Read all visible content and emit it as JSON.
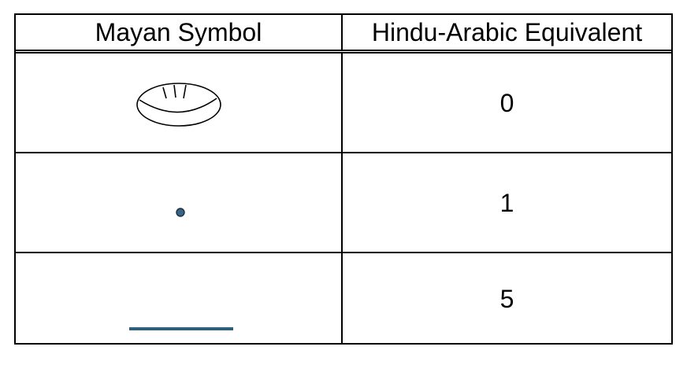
{
  "table": {
    "headers": {
      "symbol": "Mayan Symbol",
      "equivalent": "Hindu-Arabic Equivalent"
    },
    "rows": [
      {
        "symbol_icon": "shell-icon",
        "value": "0"
      },
      {
        "symbol_icon": "dot-icon",
        "value": "1"
      },
      {
        "symbol_icon": "bar-icon",
        "value": "5"
      }
    ]
  },
  "colors": {
    "symbol_stroke": "#2e5f7d",
    "border": "#000000"
  }
}
